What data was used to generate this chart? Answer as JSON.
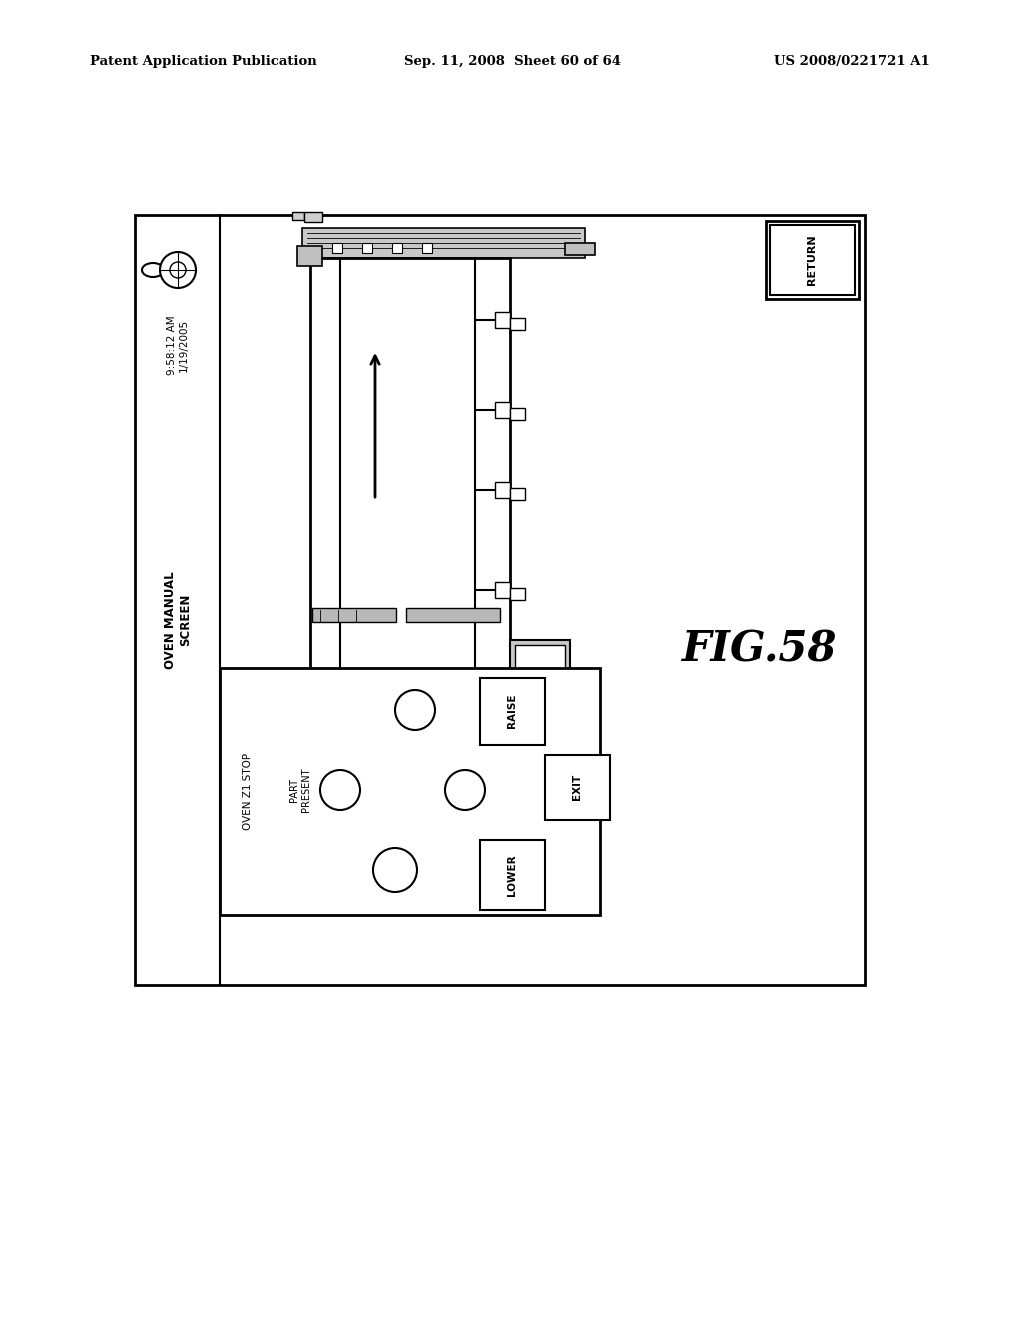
{
  "bg_color": "#ffffff",
  "header_left": "Patent Application Publication",
  "header_mid": "Sep. 11, 2008  Sheet 60 of 64",
  "header_right": "US 2008/0221721 A1",
  "fig_label": "FIG.58",
  "screen_label": "OVEN MANUAL\nSCREEN",
  "timestamp": "9:58:12 AM\n1/19/2005",
  "return_label": "RETURN",
  "raise_label": "RAISE",
  "exit_label": "EXIT",
  "lower_label": "LOWER",
  "oven_z1_stop": "OVEN Z1 STOP",
  "part_present": "PART\nPRESENT"
}
